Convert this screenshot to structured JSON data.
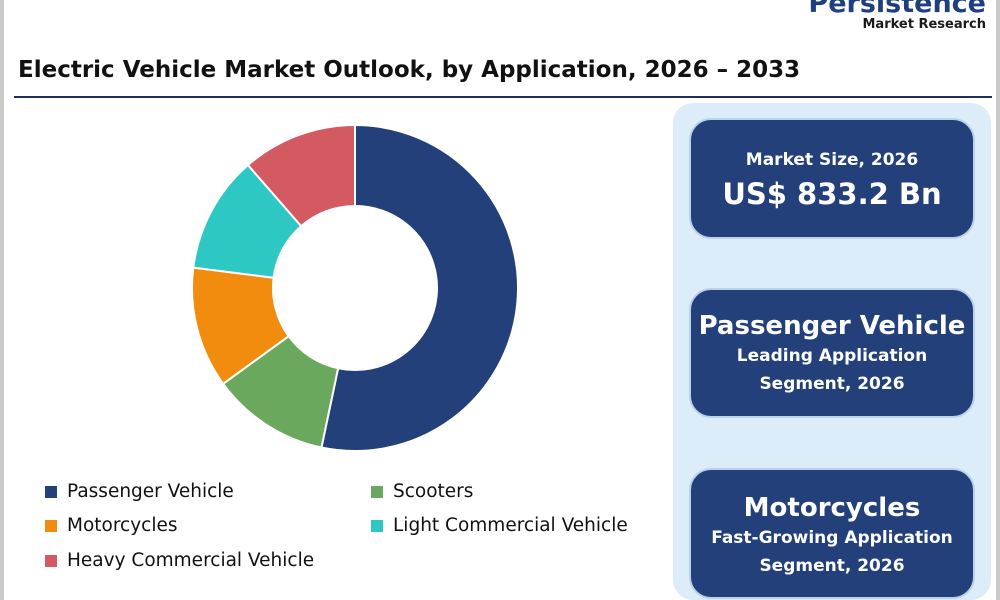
{
  "brand": {
    "name": "Persistence",
    "tagline": "Market Research"
  },
  "title": "Electric Vehicle Market Outlook, by Application, 2026 – 2033",
  "chart_data": {
    "type": "pie",
    "donut": true,
    "title": "Electric Vehicle Market Outlook, by Application, 2026 – 2033",
    "categories": [
      "Passenger Vehicle",
      "Scooters",
      "Motorcycles",
      "Light Commercial Vehicle",
      "Heavy Commercial Vehicle"
    ],
    "values": [
      53.3,
      11.7,
      12.0,
      11.6,
      11.4
    ],
    "unit": "%",
    "colors": [
      "#23407a",
      "#6aa85e",
      "#f28c0f",
      "#2ec8c4",
      "#d45a62"
    ],
    "legend_position": "bottom"
  },
  "legend": [
    {
      "label": "Passenger Vehicle",
      "color": "#23407a"
    },
    {
      "label": "Scooters",
      "color": "#6aa85e"
    },
    {
      "label": "Motorcycles",
      "color": "#f28c0f"
    },
    {
      "label": "Light Commercial Vehicle",
      "color": "#2ec8c4"
    },
    {
      "label": "Heavy Commercial Vehicle",
      "color": "#d45a62"
    }
  ],
  "cards": {
    "market_size": {
      "label": "Market Size, 2026",
      "value": "US$  833.2 Bn"
    },
    "leading": {
      "title": "Passenger Vehicle",
      "line1": "Leading Application",
      "line2": "Segment, 2026"
    },
    "fastest": {
      "title": "Motorcycles",
      "line1": "Fast-Growing Application",
      "line2": "Segment, 2026"
    }
  }
}
